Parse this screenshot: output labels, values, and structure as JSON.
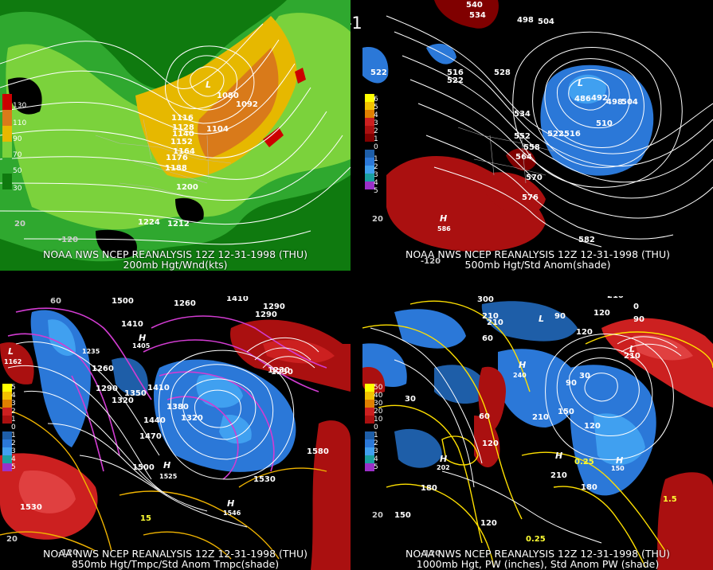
{
  "header": {
    "title": "12Z 12-31-1998 (THU)"
  },
  "panels": [
    {
      "caption_line1": "NOAA NWS NCEP REANALYSIS 12Z 12-31-1998 (THU)",
      "caption_line2": "200mb Hgt/Wnd(kts)",
      "colorbar": [
        "130",
        "110",
        "90",
        "70",
        "50",
        "30"
      ],
      "colorbar_colors": [
        "#cc0000",
        "#d97a1a",
        "#e6b800",
        "#7bd23c",
        "#2fa82f",
        "#0f7a0f"
      ],
      "labels": [
        "L",
        "1080",
        "1092",
        "1104",
        "1116",
        "1128",
        "1140",
        "1152",
        "1164",
        "1176",
        "1188",
        "1200",
        "1212",
        "1224",
        "20",
        "-120"
      ],
      "contour_values_note": ""
    },
    {
      "caption_line1": "NOAA NWS NCEP REANALYSIS 12Z 12-31-1998 (THU)",
      "caption_line2": "500mb Hgt/Std Anom(shade)",
      "colorbar": [
        "6",
        "5",
        "4",
        "3",
        "2",
        "1",
        "0",
        "1",
        "2",
        "3",
        "4",
        "5"
      ],
      "colorbar_colors": [
        "#ffff00",
        "#f2c200",
        "#e08000",
        "#cc2020",
        "#aa1010",
        "#800000",
        "#000000",
        "#1e5ea8",
        "#2b78d8",
        "#40a0f0",
        "#1aa0a0",
        "#9b30c8"
      ],
      "labels": [
        "540",
        "534",
        "498",
        "504",
        "L",
        "522",
        "516",
        "522",
        "528",
        "534",
        "492",
        "486",
        "498",
        "504",
        "510",
        "552",
        "558",
        "564",
        "522",
        "516",
        "570",
        "576",
        "H",
        "586",
        "582",
        "20",
        "-120"
      ]
    },
    {
      "caption_line1": "NOAA NWS NCEP REANALYSIS 12Z 12-31-1998 (THU)",
      "caption_line2": "850mb Hgt/Tmpc/Std Anom Tmpc(shade)",
      "colorbar": [
        "5",
        "4",
        "3",
        "2",
        "1",
        "0",
        "1",
        "2",
        "3",
        "4",
        "5"
      ],
      "colorbar_colors": [
        "#ffff00",
        "#f2c200",
        "#e08000",
        "#cc2020",
        "#aa1010",
        "#000000",
        "#1e5ea8",
        "#2b78d8",
        "#40a0f0",
        "#1aa0a0",
        "#9b30c8"
      ],
      "labels": [
        "60",
        "1500",
        "1410",
        "1260",
        "1410",
        "1290",
        "L",
        "1162",
        "1235",
        "H",
        "1405",
        "1260",
        "1290",
        "1350",
        "1320",
        "1410",
        "1380",
        "1320",
        "1440",
        "1470",
        "1500",
        "H",
        "1525",
        "1530",
        "H",
        "1546",
        "1580",
        "1530",
        "1230",
        "1290",
        "1230",
        "15",
        "20",
        "-120"
      ]
    },
    {
      "caption_line1": "NOAA NWS NCEP REANALYSIS 12Z 12-31-1998 (THU)",
      "caption_line2": "1000mb Hgt, PW (inches), Std Anom PW (shade)",
      "colorbar": [
        "50",
        "40",
        "30",
        "20",
        "10",
        "0",
        "1",
        "2",
        "3",
        "4",
        "5"
      ],
      "colorbar_colors": [
        "#ffff00",
        "#f2c200",
        "#e08000",
        "#cc2020",
        "#aa1010",
        "#000000",
        "#1e5ea8",
        "#2b78d8",
        "#40a0f0",
        "#1aa0a0",
        "#9b30c8"
      ],
      "labels": [
        "300",
        "210",
        "210",
        "120",
        "L",
        "90",
        "60",
        "120",
        "210",
        "30",
        "90",
        "240",
        "H",
        "150",
        "120",
        "210",
        "30",
        "60",
        "120",
        "H",
        "202",
        "H",
        "210",
        "180",
        "0.25",
        "H",
        "150",
        "180",
        "120",
        "150",
        "0.25",
        "1.5",
        "20",
        "-120",
        "210",
        "90",
        "0",
        "L"
      ]
    }
  ]
}
